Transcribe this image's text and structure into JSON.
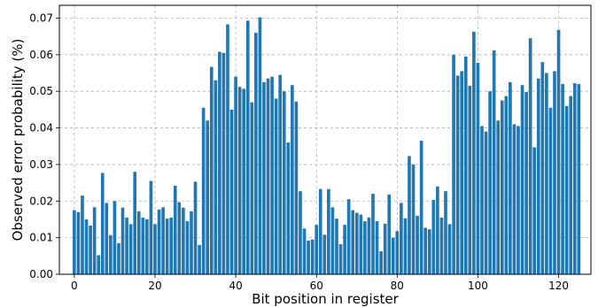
{
  "chart_data": {
    "type": "bar",
    "title": "",
    "xlabel": "Bit position in register",
    "ylabel": "Observed error probability (%)",
    "xlim": [
      -3.7,
      128
    ],
    "ylim": [
      0,
      0.0735
    ],
    "xticks": [
      0,
      20,
      40,
      60,
      80,
      100,
      120
    ],
    "yticks": [
      0.0,
      0.01,
      0.02,
      0.03,
      0.04,
      0.05,
      0.06,
      0.07
    ],
    "ytick_labels": [
      "0.00",
      "0.01",
      "0.02",
      "0.03",
      "0.04",
      "0.05",
      "0.06",
      "0.07"
    ],
    "grid": true,
    "bar_color": "#1f77b4",
    "x": [
      0,
      1,
      2,
      3,
      4,
      5,
      6,
      7,
      8,
      9,
      10,
      11,
      12,
      13,
      14,
      15,
      16,
      17,
      18,
      19,
      20,
      21,
      22,
      23,
      24,
      25,
      26,
      27,
      28,
      29,
      30,
      31,
      32,
      33,
      34,
      35,
      36,
      37,
      38,
      39,
      40,
      41,
      42,
      43,
      44,
      45,
      46,
      47,
      48,
      49,
      50,
      51,
      52,
      53,
      54,
      55,
      56,
      57,
      58,
      59,
      60,
      61,
      62,
      63,
      64,
      65,
      66,
      67,
      68,
      69,
      70,
      71,
      72,
      73,
      74,
      75,
      76,
      77,
      78,
      79,
      80,
      81,
      82,
      83,
      84,
      85,
      86,
      87,
      88,
      89,
      90,
      91,
      92,
      93,
      94,
      95,
      96,
      97,
      98,
      99,
      100,
      101,
      102,
      103,
      104,
      105,
      106,
      107,
      108,
      109,
      110,
      111,
      112,
      113,
      114,
      115,
      116,
      117,
      118,
      119,
      120,
      121,
      122,
      123,
      124,
      125
    ],
    "values": [
      0.0175,
      0.017,
      0.0215,
      0.015,
      0.0133,
      0.0183,
      0.0052,
      0.0277,
      0.0195,
      0.0107,
      0.02,
      0.0085,
      0.0182,
      0.0155,
      0.0137,
      0.028,
      0.0172,
      0.0155,
      0.015,
      0.0255,
      0.0137,
      0.0177,
      0.0183,
      0.0152,
      0.0155,
      0.0242,
      0.0197,
      0.0182,
      0.0145,
      0.0172,
      0.0253,
      0.008,
      0.0455,
      0.042,
      0.0567,
      0.053,
      0.0608,
      0.0605,
      0.0683,
      0.045,
      0.054,
      0.0512,
      0.0507,
      0.0693,
      0.047,
      0.066,
      0.0702,
      0.0525,
      0.0535,
      0.054,
      0.048,
      0.0545,
      0.05,
      0.036,
      0.0517,
      0.0472,
      0.0227,
      0.0125,
      0.0092,
      0.0095,
      0.0135,
      0.0233,
      0.0108,
      0.0233,
      0.0183,
      0.0152,
      0.0082,
      0.0135,
      0.0205,
      0.0175,
      0.0168,
      0.0163,
      0.0145,
      0.0155,
      0.022,
      0.0145,
      0.0063,
      0.0138,
      0.0218,
      0.01,
      0.0118,
      0.0195,
      0.0153,
      0.0323,
      0.03,
      0.016,
      0.0365,
      0.0127,
      0.0123,
      0.0203,
      0.024,
      0.0155,
      0.0227,
      0.0137,
      0.06,
      0.0543,
      0.0555,
      0.0595,
      0.0515,
      0.0663,
      0.0578,
      0.0405,
      0.039,
      0.05,
      0.0612,
      0.042,
      0.0475,
      0.0487,
      0.0525,
      0.041,
      0.0405,
      0.0517,
      0.0498,
      0.0645,
      0.0347,
      0.0535,
      0.058,
      0.055,
      0.0455,
      0.0555,
      0.0668,
      0.052,
      0.046,
      0.0487,
      0.0522,
      0.052
    ]
  }
}
